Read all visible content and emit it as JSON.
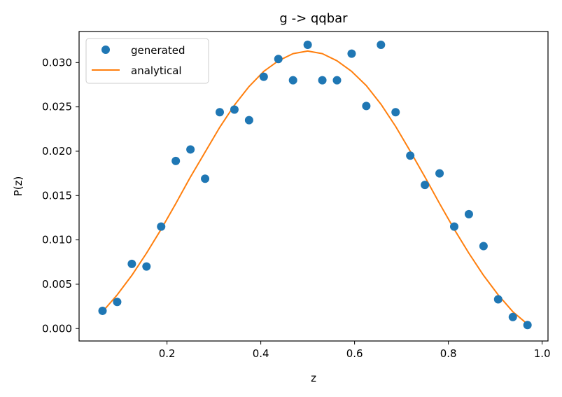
{
  "chart_data": {
    "type": "scatter",
    "title": "g -> qqbar",
    "xlabel": "z",
    "ylabel": "P(z)",
    "xlim": [
      0.0125,
      1.0125
    ],
    "ylim": [
      -0.0014,
      0.0335
    ],
    "xticks": [
      0.2,
      0.4,
      0.6,
      0.8,
      1.0
    ],
    "xtick_labels": [
      "0.2",
      "0.4",
      "0.6",
      "0.8",
      "1.0"
    ],
    "yticks": [
      0.0,
      0.005,
      0.01,
      0.015,
      0.02,
      0.025,
      0.03
    ],
    "ytick_labels": [
      "0.000",
      "0.005",
      "0.010",
      "0.015",
      "0.020",
      "0.025",
      "0.030"
    ],
    "grid": false,
    "legend_position": "top-left",
    "series": [
      {
        "name": "generated",
        "kind": "markers",
        "color": "#1f77b4",
        "x": [
          0.0625,
          0.09375,
          0.125,
          0.15625,
          0.1875,
          0.21875,
          0.25,
          0.28125,
          0.3125,
          0.34375,
          0.375,
          0.40625,
          0.4375,
          0.46875,
          0.5,
          0.53125,
          0.5625,
          0.59375,
          0.625,
          0.65625,
          0.6875,
          0.71875,
          0.75,
          0.78125,
          0.8125,
          0.84375,
          0.875,
          0.90625,
          0.9375,
          0.96875
        ],
        "y": [
          0.002,
          0.003,
          0.0073,
          0.007,
          0.0115,
          0.0189,
          0.0202,
          0.0169,
          0.0244,
          0.0247,
          0.0235,
          0.0284,
          0.0304,
          0.028,
          0.032,
          0.028,
          0.028,
          0.031,
          0.0251,
          0.032,
          0.0244,
          0.0195,
          0.0162,
          0.0175,
          0.0115,
          0.0129,
          0.0093,
          0.0033,
          0.0013,
          0.0004
        ]
      },
      {
        "name": "analytical",
        "kind": "line",
        "color": "#ff7f0e",
        "x": [
          0.0625,
          0.09375,
          0.125,
          0.15625,
          0.1875,
          0.21875,
          0.25,
          0.28125,
          0.3125,
          0.34375,
          0.375,
          0.40625,
          0.4375,
          0.46875,
          0.5,
          0.53125,
          0.5625,
          0.59375,
          0.625,
          0.65625,
          0.6875,
          0.71875,
          0.75,
          0.78125,
          0.8125,
          0.84375,
          0.875,
          0.90625,
          0.9375,
          0.96875
        ],
        "y": [
          0.0019,
          0.0038,
          0.006,
          0.0085,
          0.0112,
          0.0141,
          0.0171,
          0.0199,
          0.0227,
          0.0252,
          0.0273,
          0.029,
          0.0302,
          0.031,
          0.0313,
          0.031,
          0.0302,
          0.029,
          0.0274,
          0.0253,
          0.0228,
          0.02,
          0.0171,
          0.0141,
          0.0112,
          0.0085,
          0.006,
          0.0038,
          0.0019,
          0.0005
        ]
      }
    ]
  }
}
